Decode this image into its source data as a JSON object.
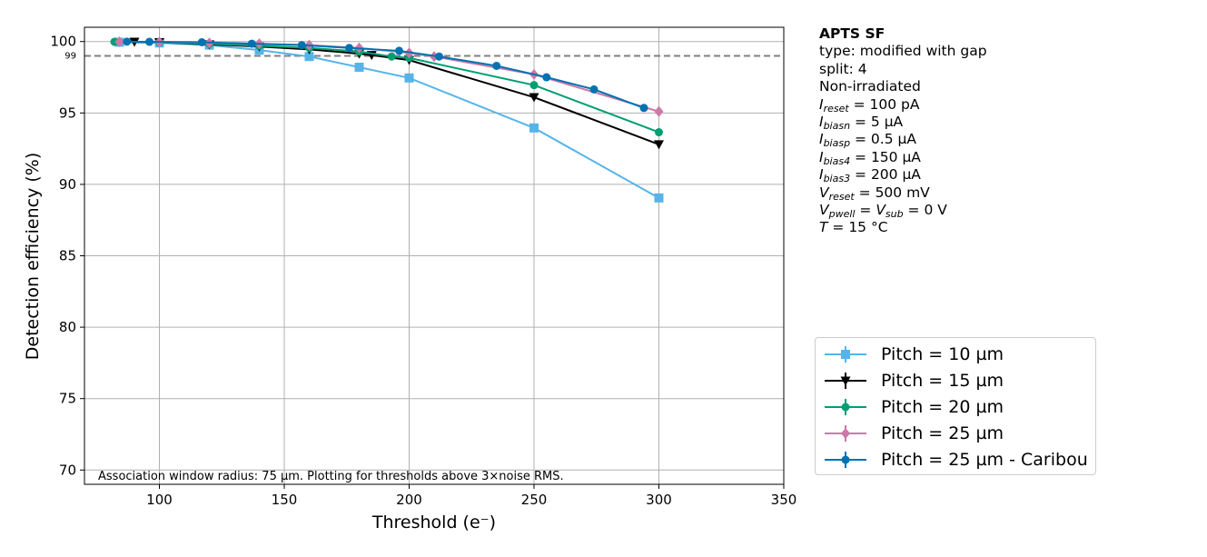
{
  "chart_data": {
    "type": "line",
    "xlabel": "Threshold (e⁻)",
    "ylabel": "Detection efficiency (%)",
    "xlim": [
      70,
      350
    ],
    "ylim": [
      69,
      101
    ],
    "xticks": [
      100,
      150,
      200,
      250,
      300,
      350
    ],
    "yticks": [
      70,
      75,
      80,
      85,
      90,
      95,
      100
    ],
    "grid": true,
    "reference_line": {
      "y": 99,
      "label": "99",
      "style": "dashed",
      "color": "#808080"
    },
    "annotation": "Association window radius: 75 µm. Plotting for thresholds above 3×noise RMS.",
    "legend_position": "right",
    "series": [
      {
        "name": "Pitch = 10 µm",
        "color": "#56b4e9",
        "marker": "square",
        "x": [
          84,
          100,
          120,
          140,
          160,
          180,
          200,
          250,
          300
        ],
        "y": [
          99.95,
          99.9,
          99.75,
          99.4,
          98.95,
          98.2,
          97.45,
          93.95,
          89.05
        ]
      },
      {
        "name": "Pitch = 15 µm",
        "color": "#000000",
        "marker": "triangle-down",
        "x": [
          90,
          100,
          120,
          140,
          160,
          180,
          185,
          200,
          250,
          300
        ],
        "y": [
          99.98,
          99.95,
          99.8,
          99.65,
          99.45,
          99.15,
          99.05,
          98.7,
          96.1,
          92.8
        ]
      },
      {
        "name": "Pitch = 20 µm",
        "color": "#009e73",
        "marker": "circle",
        "x": [
          82,
          100,
          120,
          140,
          160,
          180,
          193,
          200,
          250,
          300
        ],
        "y": [
          99.98,
          99.95,
          99.85,
          99.7,
          99.55,
          99.3,
          98.95,
          98.85,
          96.95,
          93.65
        ]
      },
      {
        "name": "Pitch = 25 µm",
        "color": "#cc79a7",
        "marker": "diamond",
        "x": [
          84,
          100,
          120,
          140,
          160,
          180,
          200,
          210,
          250,
          300
        ],
        "y": [
          99.98,
          99.97,
          99.9,
          99.85,
          99.75,
          99.55,
          99.2,
          98.95,
          97.7,
          95.1
        ]
      },
      {
        "name": "Pitch = 25 µm - Caribou",
        "color": "#0072b2",
        "marker": "circle",
        "x": [
          87,
          96,
          117,
          137,
          157,
          176,
          196,
          212,
          235,
          255,
          274,
          294
        ],
        "y": [
          99.99,
          99.98,
          99.95,
          99.85,
          99.75,
          99.55,
          99.35,
          98.95,
          98.3,
          97.5,
          96.65,
          95.35
        ]
      }
    ]
  },
  "info": {
    "title": "APTS SF",
    "type_line": "type: modified with gap",
    "split_line": "split:  4",
    "irradiation": "Non-irradiated",
    "i_reset": "100 pA",
    "i_biasn": "5 µA",
    "i_biasp": "0.5 µA",
    "i_bias4": "150 µA",
    "i_bias3": "200 µA",
    "v_reset": "500 mV",
    "v_pwell_sub": "0 V",
    "temperature": "15 °C"
  }
}
